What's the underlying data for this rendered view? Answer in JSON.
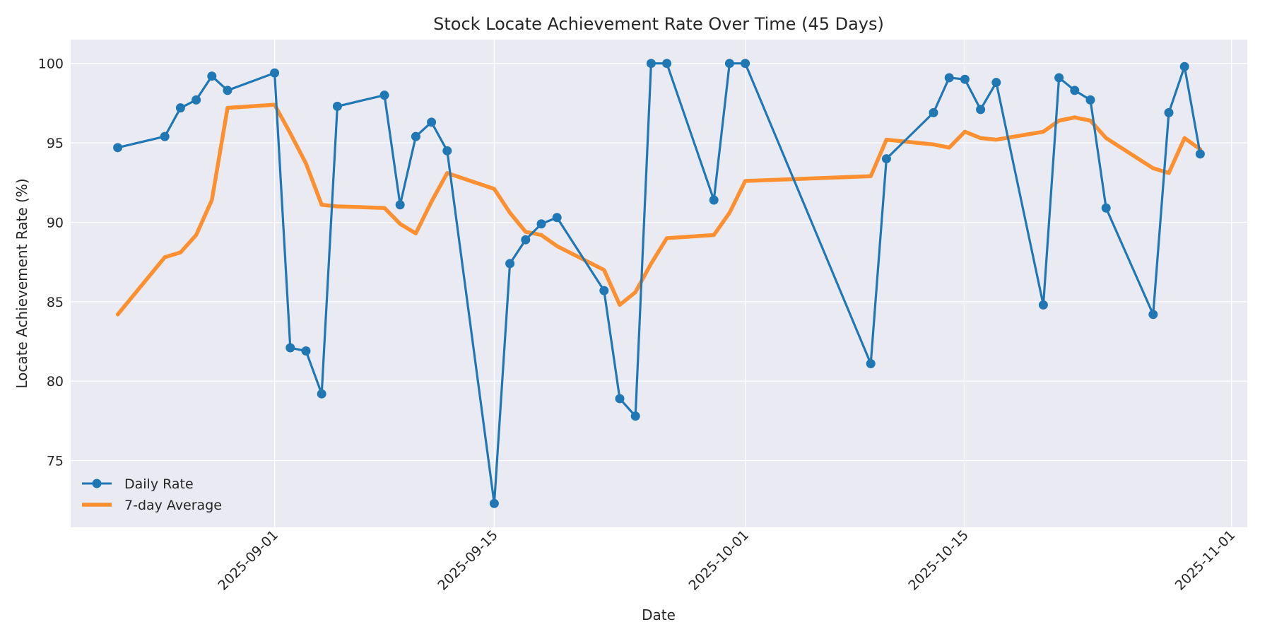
{
  "chart_data": {
    "type": "line",
    "title": "Stock Locate Achievement Rate Over Time (45 Days)",
    "xlabel": "Date",
    "ylabel": "Locate Achievement Rate (%)",
    "x_ticks": [
      "2025-09-01",
      "2025-09-15",
      "2025-10-01",
      "2025-10-15",
      "2025-11-01"
    ],
    "y_ticks": [
      75,
      80,
      85,
      90,
      95,
      100
    ],
    "xlim": [
      "2025-08-19",
      "2025-11-02"
    ],
    "ylim": [
      70.8,
      101.5
    ],
    "grid": true,
    "legend_position": "lower-left",
    "x": [
      "2025-08-22",
      "2025-08-25",
      "2025-08-26",
      "2025-08-27",
      "2025-08-28",
      "2025-08-29",
      "2025-09-01",
      "2025-09-02",
      "2025-09-03",
      "2025-09-04",
      "2025-09-05",
      "2025-09-08",
      "2025-09-09",
      "2025-09-10",
      "2025-09-11",
      "2025-09-12",
      "2025-09-15",
      "2025-09-16",
      "2025-09-17",
      "2025-09-18",
      "2025-09-19",
      "2025-09-22",
      "2025-09-23",
      "2025-09-24",
      "2025-09-25",
      "2025-09-26",
      "2025-09-29",
      "2025-09-30",
      "2025-10-01",
      "2025-10-09",
      "2025-10-10",
      "2025-10-13",
      "2025-10-14",
      "2025-10-15",
      "2025-10-16",
      "2025-10-17",
      "2025-10-20",
      "2025-10-21",
      "2025-10-22",
      "2025-10-23",
      "2025-10-24",
      "2025-10-27",
      "2025-10-28",
      "2025-10-29",
      "2025-10-30"
    ],
    "series": [
      {
        "name": "Daily Rate",
        "color": "#1f77b4",
        "marker": "circle",
        "values": [
          94.7,
          95.4,
          97.2,
          97.7,
          99.2,
          98.3,
          99.4,
          82.1,
          81.9,
          79.2,
          97.3,
          98.0,
          91.1,
          95.4,
          96.3,
          94.5,
          72.3,
          87.4,
          88.9,
          89.9,
          90.3,
          85.7,
          78.9,
          77.8,
          100.0,
          100.0,
          91.4,
          100.0,
          100.0,
          81.1,
          94.0,
          96.9,
          99.1,
          99.0,
          97.1,
          98.8,
          84.8,
          99.1,
          98.3,
          97.7,
          90.9,
          84.2,
          96.9,
          99.8,
          94.3
        ]
      },
      {
        "name": "7-day Average",
        "color": "#ff7f0e",
        "marker": "none",
        "values": [
          84.2,
          87.8,
          88.1,
          89.2,
          91.4,
          97.2,
          97.4,
          95.6,
          93.7,
          91.1,
          91.0,
          90.9,
          89.9,
          89.3,
          91.3,
          93.1,
          92.1,
          90.6,
          89.4,
          89.2,
          88.5,
          87.0,
          84.8,
          85.6,
          87.4,
          89.0,
          89.2,
          90.6,
          92.6,
          92.9,
          95.2,
          94.9,
          94.7,
          95.7,
          95.3,
          95.2,
          95.7,
          96.4,
          96.6,
          96.4,
          95.3,
          93.4,
          93.1,
          95.3,
          94.6
        ]
      }
    ]
  }
}
